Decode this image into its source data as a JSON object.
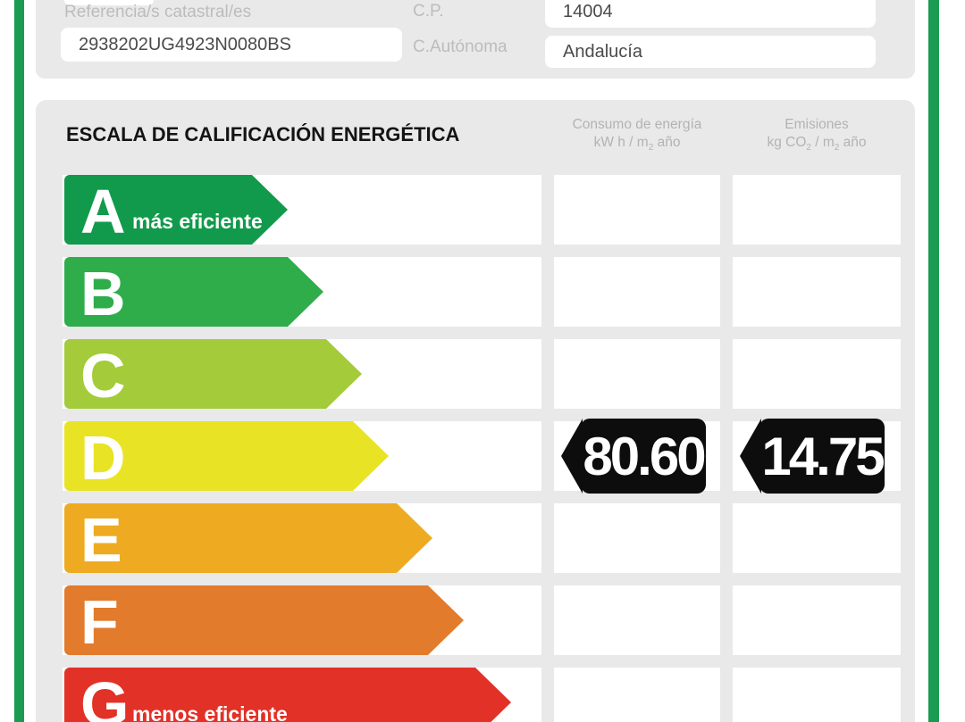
{
  "form": {
    "referencia_label": "Referencia/s catastral/es",
    "referencia_value": "2938202UG4923N0080BS",
    "cp_label": "C.P.",
    "cp_value": "14004",
    "autonoma_label": "C.Autónoma",
    "autonoma_value": "Andalucía"
  },
  "scale": {
    "title": "ESCALA DE CALIFICACIÓN ENERGÉTICA",
    "columns": {
      "consumo": {
        "line1": "Consumo de energía",
        "unit_pre": "kW h / m",
        "unit_sub": "2",
        "unit_post": " año"
      },
      "emisiones": {
        "line1": "Emisiones",
        "unit_pre": "kg CO",
        "unit_sub1": "2",
        "unit_mid": " / m",
        "unit_sub2": "2",
        "unit_post": " año"
      }
    },
    "ratings": [
      {
        "letter": "A",
        "label": "más eficiente",
        "color": "#119a4b",
        "body_width": 210
      },
      {
        "letter": "B",
        "label": "",
        "color": "#2fad4b",
        "body_width": 250
      },
      {
        "letter": "C",
        "label": "",
        "color": "#a3cb3a",
        "body_width": 293
      },
      {
        "letter": "D",
        "label": "",
        "color": "#e9e326",
        "body_width": 323
      },
      {
        "letter": "E",
        "label": "",
        "color": "#eeab22",
        "body_width": 372
      },
      {
        "letter": "F",
        "label": "",
        "color": "#e27b2c",
        "body_width": 407
      },
      {
        "letter": "G",
        "label": "menos eficiente",
        "color": "#e23127",
        "body_width": 460
      }
    ],
    "result": {
      "grade": "D",
      "consumo": "80.60",
      "emisiones": "14.75",
      "badge_color": "#0d0d0d"
    }
  },
  "colors": {
    "accent_green": "#1b9b52",
    "panel_gray": "#e9e9e9",
    "label_gray": "#bcbcbc"
  }
}
